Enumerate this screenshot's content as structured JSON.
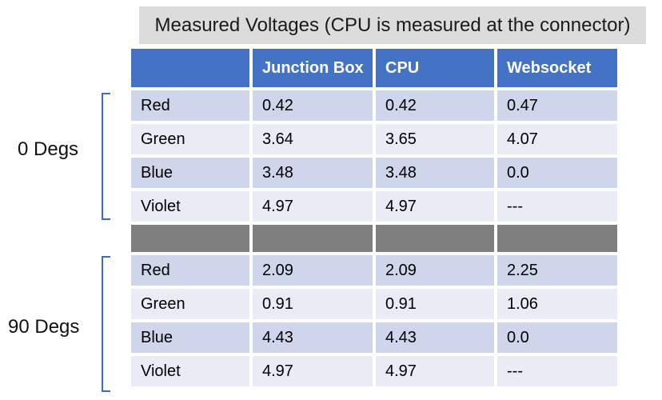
{
  "title": "Measured Voltages (CPU is measured at the connector)",
  "table": {
    "headers": [
      "",
      "Junction Box",
      "CPU",
      "Websocket"
    ],
    "rows_0deg": [
      [
        "Red",
        "0.42",
        "0.42",
        "0.47"
      ],
      [
        "Green",
        "3.64",
        "3.65",
        "4.07"
      ],
      [
        "Blue",
        "3.48",
        "3.48",
        "0.0"
      ],
      [
        "Violet",
        "4.97",
        "4.97",
        "---"
      ]
    ],
    "rows_90deg": [
      [
        "Red",
        "2.09",
        "2.09",
        "2.25"
      ],
      [
        "Green",
        "0.91",
        "0.91",
        "1.06"
      ],
      [
        "Blue",
        "4.43",
        "4.43",
        "0.0"
      ],
      [
        "Violet",
        "4.97",
        "4.97",
        "---"
      ]
    ]
  },
  "groups": {
    "g0_label": "0 Degs",
    "g90_label": "90 Degs",
    "brace_color": "#3b6cc0"
  },
  "colors": {
    "header_bg": "#4472c4",
    "row_odd": "#cfd5ea",
    "row_even": "#e9ebf5",
    "separator": "#7f7f7f",
    "title_bg": "#dcdcdc"
  }
}
